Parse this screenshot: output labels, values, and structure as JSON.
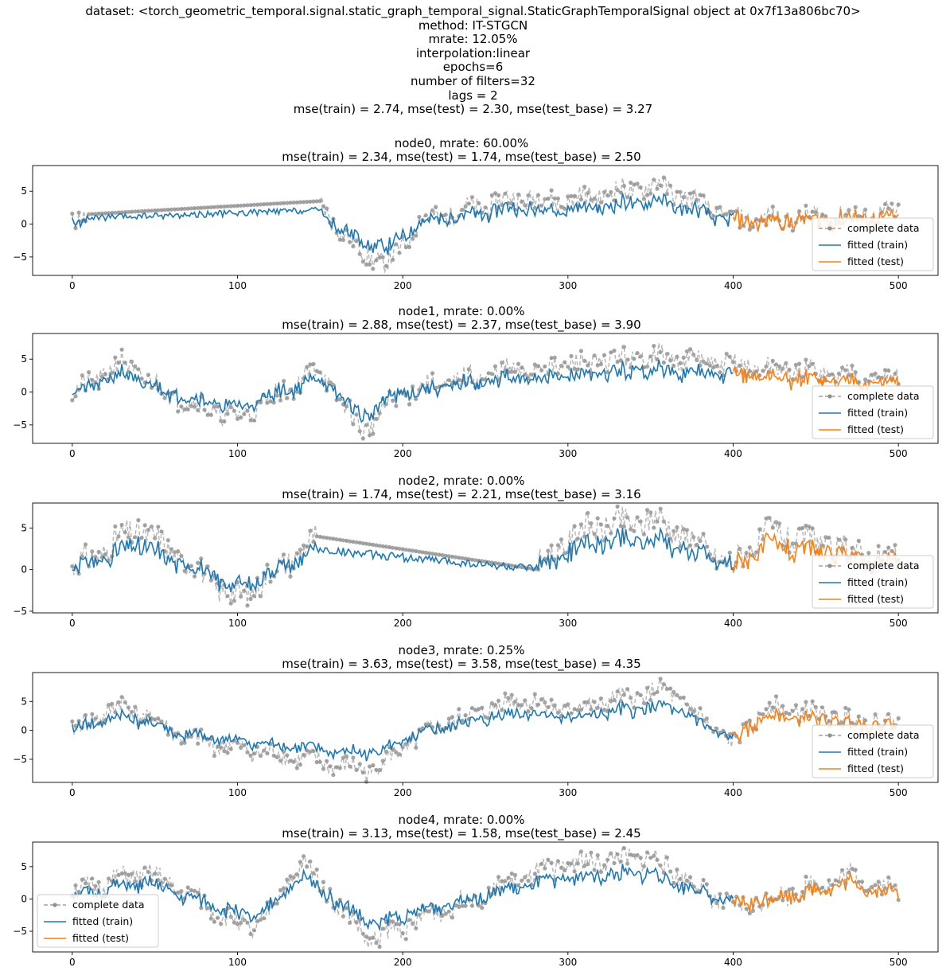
{
  "suptitle": [
    "dataset: <torch_geometric_temporal.signal.static_graph_temporal_signal.StaticGraphTemporalSignal object at 0x7f13a806bc70>",
    "method: IT-STGCN",
    "mrate: 12.05%",
    "interpolation:linear",
    "epochs=6",
    "number of filters=32",
    "lags = 2",
    "mse(train) = 2.74, mse(test) = 2.30, mse(test_base) = 3.27"
  ],
  "colors": {
    "complete": "#a0a0a0",
    "train": "#1f77b4",
    "test": "#ff7f0e"
  },
  "legend_labels": [
    "complete data",
    "fitted (train)",
    "fitted (test)"
  ],
  "chart_data": [
    {
      "type": "line",
      "title": [
        "node0, mrate: 60.00%",
        "mse(train) = 2.34, mse(test) = 1.74, mse(test_base) = 2.50"
      ],
      "xlim": [
        -24,
        524
      ],
      "ylim": [
        -7.8,
        8.9
      ],
      "xticks": [
        0,
        100,
        200,
        300,
        400,
        500
      ],
      "yticks": [
        -5,
        0,
        5
      ],
      "legend_loc": "lower right",
      "series": [
        {
          "name": "complete data",
          "style": "dashed-dots",
          "x": [
            0,
            150,
            165,
            190,
            210,
            270,
            300,
            355,
            400,
            500
          ],
          "y": [
            0.3,
            3.5,
            -2,
            -6.5,
            0.5,
            4,
            3.5,
            6,
            0.5,
            1.5
          ]
        },
        {
          "name": "fitted (train)",
          "x_range": [
            0,
            400
          ],
          "seed": 11
        },
        {
          "name": "fitted (test)",
          "x_range": [
            400,
            500
          ],
          "seed": 12
        }
      ],
      "interpolated_segments": [
        [
          10,
          150
        ]
      ]
    },
    {
      "type": "line",
      "title": [
        "node1, mrate: 0.00%",
        "mse(train) = 2.88, mse(test) = 2.37, mse(test_base) = 3.90"
      ],
      "xlim": [
        -24,
        524
      ],
      "ylim": [
        -7.8,
        8.9
      ],
      "xticks": [
        0,
        100,
        200,
        300,
        400,
        500
      ],
      "yticks": [
        -5,
        0,
        5
      ],
      "legend_loc": "lower right",
      "series": [
        {
          "name": "complete data",
          "x": [
            0,
            30,
            60,
            100,
            150,
            175,
            200,
            260,
            350,
            420,
            500
          ],
          "y": [
            -0.5,
            4.5,
            -0.5,
            -4,
            3.5,
            -6,
            0,
            3,
            5.5,
            3.5,
            2
          ]
        },
        {
          "name": "fitted (train)",
          "x_range": [
            0,
            400
          ],
          "seed": 21
        },
        {
          "name": "fitted (test)",
          "x_range": [
            400,
            500
          ],
          "seed": 22
        }
      ],
      "interpolated_segments": []
    },
    {
      "type": "line",
      "title": [
        "node2, mrate: 0.00%",
        "mse(train) = 1.74, mse(test) = 2.21, mse(test_base) = 3.16"
      ],
      "xlim": [
        -24,
        524
      ],
      "ylim": [
        -5.2,
        8.0
      ],
      "xticks": [
        0,
        100,
        200,
        300,
        400,
        500
      ],
      "yticks": [
        -5,
        0,
        5
      ],
      "legend_loc": "lower right",
      "series": [
        {
          "name": "complete data",
          "x": [
            0,
            40,
            100,
            150,
            280,
            310,
            355,
            400,
            420,
            500
          ],
          "y": [
            0,
            5,
            -3.5,
            4,
            0,
            5,
            6,
            0.5,
            4.5,
            1
          ]
        },
        {
          "name": "fitted (train)",
          "x_range": [
            0,
            400
          ],
          "seed": 31
        },
        {
          "name": "fitted (test)",
          "x_range": [
            400,
            500
          ],
          "seed": 32
        }
      ],
      "interpolated_segments": [
        [
          148,
          282
        ]
      ]
    },
    {
      "type": "line",
      "title": [
        "node3, mrate: 0.25%",
        "mse(train) = 3.63, mse(test) = 3.58, mse(test_base) = 4.35"
      ],
      "xlim": [
        -24,
        524
      ],
      "ylim": [
        -9.0,
        10.0
      ],
      "xticks": [
        0,
        100,
        200,
        300,
        400,
        500
      ],
      "yticks": [
        -5,
        0,
        5
      ],
      "legend_loc": "lower right",
      "series": [
        {
          "name": "complete data",
          "x": [
            0,
            30,
            70,
            100,
            180,
            220,
            270,
            300,
            360,
            400,
            420,
            500
          ],
          "y": [
            0,
            4.5,
            -1.5,
            -3,
            -7,
            0.5,
            5.5,
            3.5,
            7,
            -2.5,
            4,
            1
          ]
        },
        {
          "name": "fitted (train)",
          "x_range": [
            0,
            400
          ],
          "seed": 41
        },
        {
          "name": "fitted (test)",
          "x_range": [
            400,
            500
          ],
          "seed": 42
        }
      ],
      "interpolated_segments": []
    },
    {
      "type": "line",
      "title": [
        "node4, mrate: 0.00%",
        "mse(train) = 3.13, mse(test) = 1.58, mse(test_base) = 2.45"
      ],
      "xlim": [
        -24,
        524
      ],
      "ylim": [
        -8.2,
        8.8
      ],
      "xticks": [
        0,
        100,
        200,
        300,
        400,
        500
      ],
      "yticks": [
        -5,
        0,
        5
      ],
      "legend_loc": "lower left",
      "series": [
        {
          "name": "complete data",
          "x": [
            0,
            45,
            110,
            140,
            180,
            230,
            300,
            350,
            400,
            470,
            500
          ],
          "y": [
            1,
            4,
            -5,
            5.5,
            -6.5,
            -1,
            5.5,
            6.5,
            -1.5,
            3.5,
            1
          ]
        },
        {
          "name": "fitted (train)",
          "x_range": [
            0,
            400
          ],
          "seed": 51
        },
        {
          "name": "fitted (test)",
          "x_range": [
            400,
            500
          ],
          "seed": 52
        }
      ],
      "interpolated_segments": []
    }
  ]
}
